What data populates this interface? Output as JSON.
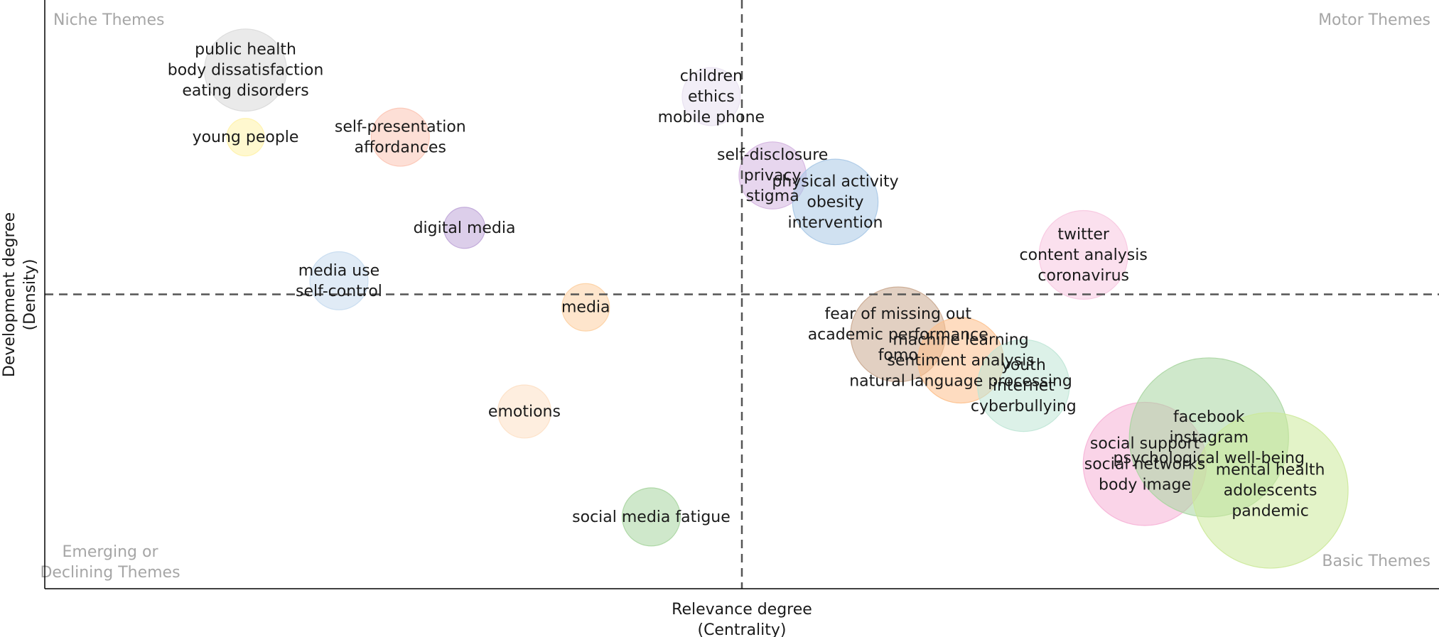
{
  "chart_data": {
    "type": "scatter",
    "title": "",
    "xlabel": [
      "Relevance degree",
      "(Centrality)"
    ],
    "ylabel": [
      "Development degree",
      "(Density)"
    ],
    "xlim": [
      0,
      1
    ],
    "ylim": [
      0,
      1
    ],
    "x_divider": 0.5,
    "y_divider": 0.5,
    "grid": false,
    "quadrants": {
      "top_left": [
        "Niche Themes"
      ],
      "top_right": [
        "Motor Themes"
      ],
      "bottom_left": [
        "Emerging or",
        "Declining Themes"
      ],
      "bottom_right": [
        "Basic Themes"
      ]
    },
    "clusters": [
      {
        "labels": [
          "public health",
          "body dissatisfaction",
          "eating disorders"
        ],
        "x": 0.144,
        "y": 0.881,
        "size": 0.024,
        "color": "#d9d9d9"
      },
      {
        "labels": [
          "young people"
        ],
        "x": 0.144,
        "y": 0.767,
        "size": 0.005,
        "color": "#fff2a8"
      },
      {
        "labels": [
          "self-presentation",
          "affordances"
        ],
        "x": 0.255,
        "y": 0.767,
        "size": 0.012,
        "color": "#fcc5b5"
      },
      {
        "labels": [
          "digital media"
        ],
        "x": 0.301,
        "y": 0.613,
        "size": 0.006,
        "color": "#bfa5d8"
      },
      {
        "labels": [
          "media use",
          "self-control"
        ],
        "x": 0.211,
        "y": 0.523,
        "size": 0.012,
        "color": "#c6dbef"
      },
      {
        "labels": [
          "media"
        ],
        "x": 0.388,
        "y": 0.478,
        "size": 0.008,
        "color": "#fdd0a2"
      },
      {
        "labels": [
          "emotions"
        ],
        "x": 0.344,
        "y": 0.301,
        "size": 0.01,
        "color": "#fde0c5"
      },
      {
        "labels": [
          "social media fatigue"
        ],
        "x": 0.435,
        "y": 0.122,
        "size": 0.012,
        "color": "#a8d5a0"
      },
      {
        "labels": [
          "children",
          "ethics",
          "mobile phone"
        ],
        "x": 0.478,
        "y": 0.836,
        "size": 0.012,
        "color": "#e8e0f0"
      },
      {
        "labels": [
          "self-disclosure",
          "privacy",
          "stigma"
        ],
        "x": 0.522,
        "y": 0.702,
        "size": 0.016,
        "color": "#d4b4e0"
      },
      {
        "labels": [
          "physical activity",
          "obesity",
          "intervention"
        ],
        "x": 0.567,
        "y": 0.657,
        "size": 0.026,
        "color": "#a9c8e6"
      },
      {
        "labels": [
          "twitter",
          "content analysis",
          "coronavirus"
        ],
        "x": 0.745,
        "y": 0.567,
        "size": 0.028,
        "color": "#f7c6e0"
      },
      {
        "labels": [
          "fear of missing out",
          "academic performance",
          "fomo"
        ],
        "x": 0.612,
        "y": 0.432,
        "size": 0.032,
        "color": "#caa990"
      },
      {
        "labels": [
          "machine learning",
          "sentiment analysis",
          "natural language processing"
        ],
        "x": 0.657,
        "y": 0.388,
        "size": 0.026,
        "color": "#fdc08c"
      },
      {
        "labels": [
          "youth",
          "internet",
          "cyberbullying"
        ],
        "x": 0.702,
        "y": 0.345,
        "size": 0.03,
        "color": "#bfe6d6"
      },
      {
        "labels": [
          "social support",
          "social networks",
          "body image"
        ],
        "x": 0.789,
        "y": 0.212,
        "size": 0.054,
        "color": "#f6b1d6"
      },
      {
        "labels": [
          "facebook",
          "instagram",
          "psychological well-being"
        ],
        "x": 0.835,
        "y": 0.257,
        "size": 0.09,
        "color": "#a8d5a0"
      },
      {
        "labels": [
          "mental health",
          "adolescents",
          "pandemic"
        ],
        "x": 0.879,
        "y": 0.167,
        "size": 0.086,
        "color": "#cce99a"
      }
    ]
  }
}
